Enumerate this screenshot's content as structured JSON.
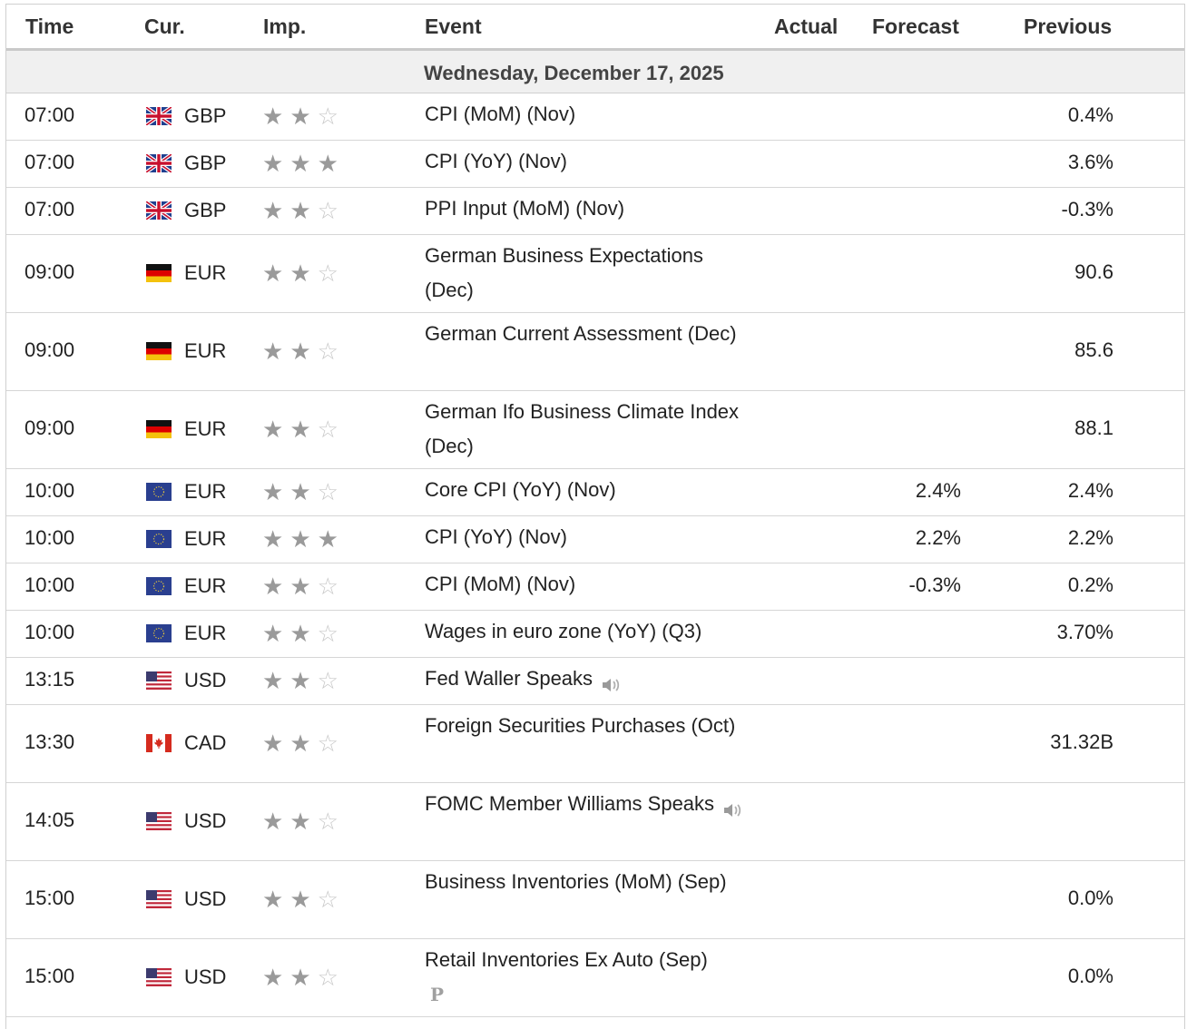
{
  "header": {
    "time": "Time",
    "cur": "Cur.",
    "imp": "Imp.",
    "event": "Event",
    "actual": "Actual",
    "forecast": "Forecast",
    "previous": "Previous"
  },
  "day": "Wednesday, December 17, 2025",
  "rows": [
    {
      "time": "07:00",
      "flag": "gb-flag-icon",
      "cur": "GBP",
      "stars": 2,
      "event": "CPI (MoM) (Nov)",
      "actual": "",
      "forecast": "",
      "previous": "0.4%"
    },
    {
      "time": "07:00",
      "flag": "gb-flag-icon",
      "cur": "GBP",
      "stars": 3,
      "event": "CPI (YoY) (Nov)",
      "actual": "",
      "forecast": "",
      "previous": "3.6%"
    },
    {
      "time": "07:00",
      "flag": "gb-flag-icon",
      "cur": "GBP",
      "stars": 2,
      "event": "PPI Input (MoM) (Nov)",
      "actual": "",
      "forecast": "",
      "previous": "-0.3%"
    },
    {
      "time": "09:00",
      "flag": "de-flag-icon",
      "cur": "EUR",
      "stars": 2,
      "event": "German Business Expectations (Dec)",
      "actual": "",
      "forecast": "",
      "previous": "90.6"
    },
    {
      "time": "09:00",
      "flag": "de-flag-icon",
      "cur": "EUR",
      "stars": 2,
      "event": "German Current Assessment (Dec)",
      "actual": "",
      "forecast": "",
      "previous": "85.6"
    },
    {
      "time": "09:00",
      "flag": "de-flag-icon",
      "cur": "EUR",
      "stars": 2,
      "event": "German Ifo Business Climate Index (Dec)",
      "actual": "",
      "forecast": "",
      "previous": "88.1"
    },
    {
      "time": "10:00",
      "flag": "eu-flag-icon",
      "cur": "EUR",
      "stars": 2,
      "event": "Core CPI (YoY) (Nov)",
      "actual": "",
      "forecast": "2.4%",
      "previous": "2.4%"
    },
    {
      "time": "10:00",
      "flag": "eu-flag-icon",
      "cur": "EUR",
      "stars": 3,
      "event": "CPI (YoY) (Nov)",
      "actual": "",
      "forecast": "2.2%",
      "previous": "2.2%"
    },
    {
      "time": "10:00",
      "flag": "eu-flag-icon",
      "cur": "EUR",
      "stars": 2,
      "event": "CPI (MoM) (Nov)",
      "actual": "",
      "forecast": "-0.3%",
      "previous": "0.2%"
    },
    {
      "time": "10:00",
      "flag": "eu-flag-icon",
      "cur": "EUR",
      "stars": 2,
      "event": "Wages in euro zone (YoY) (Q3)",
      "actual": "",
      "forecast": "",
      "previous": "3.70%"
    },
    {
      "time": "13:15",
      "flag": "us-flag-icon",
      "cur": "USD",
      "stars": 2,
      "event": "Fed Waller Speaks",
      "icon": "speaker-icon",
      "actual": "",
      "forecast": "",
      "previous": ""
    },
    {
      "time": "13:30",
      "flag": "ca-flag-icon",
      "cur": "CAD",
      "stars": 2,
      "event": "Foreign Securities Purchases (Oct)",
      "actual": "",
      "forecast": "",
      "previous": "31.32B"
    },
    {
      "time": "14:05",
      "flag": "us-flag-icon",
      "cur": "USD",
      "stars": 2,
      "event": "FOMC Member Williams Speaks",
      "icon": "speaker-icon",
      "actual": "",
      "forecast": "",
      "previous": ""
    },
    {
      "time": "15:00",
      "flag": "us-flag-icon",
      "cur": "USD",
      "stars": 2,
      "event": "Business Inventories (MoM) (Sep)",
      "actual": "",
      "forecast": "",
      "previous": "0.0%"
    },
    {
      "time": "15:00",
      "flag": "us-flag-icon",
      "cur": "USD",
      "stars": 2,
      "event": "Retail Inventories Ex Auto (Sep)",
      "icon": "preliminary-icon",
      "icon_text": "P",
      "actual": "",
      "forecast": "",
      "previous": "0.0%"
    }
  ]
}
